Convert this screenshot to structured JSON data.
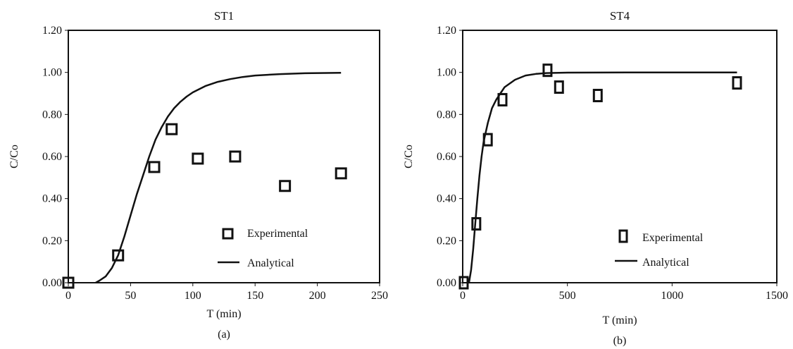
{
  "chart_data": [
    {
      "type": "scatter",
      "title": "ST1",
      "caption": "(a)",
      "xlabel": "T (min)",
      "ylabel": "C/Co",
      "xlim": [
        0,
        250
      ],
      "ylim": [
        0,
        1.2
      ],
      "x_ticks": [
        "0",
        "50",
        "100",
        "150",
        "200",
        "250"
      ],
      "y_ticks": [
        "0.00",
        "0.20",
        "0.40",
        "0.60",
        "0.80",
        "1.00",
        "1.20"
      ],
      "grid": false,
      "legend_position": "bottom-right",
      "series": [
        {
          "name": "Experimental",
          "kind": "marker",
          "marker": "open-square",
          "points": [
            [
              0,
              0.0
            ],
            [
              40,
              0.13
            ],
            [
              69,
              0.55
            ],
            [
              83,
              0.73
            ],
            [
              104,
              0.59
            ],
            [
              134,
              0.6
            ],
            [
              174,
              0.46
            ],
            [
              219,
              0.52
            ]
          ]
        },
        {
          "name": "Analytical",
          "kind": "line",
          "points": [
            [
              22,
              0.0
            ],
            [
              25,
              0.01
            ],
            [
              30,
              0.03
            ],
            [
              35,
              0.07
            ],
            [
              40,
              0.13
            ],
            [
              45,
              0.22
            ],
            [
              50,
              0.32
            ],
            [
              55,
              0.42
            ],
            [
              60,
              0.51
            ],
            [
              65,
              0.6
            ],
            [
              70,
              0.68
            ],
            [
              75,
              0.74
            ],
            [
              80,
              0.79
            ],
            [
              85,
              0.83
            ],
            [
              90,
              0.86
            ],
            [
              95,
              0.885
            ],
            [
              100,
              0.905
            ],
            [
              110,
              0.935
            ],
            [
              120,
              0.955
            ],
            [
              130,
              0.968
            ],
            [
              140,
              0.978
            ],
            [
              150,
              0.985
            ],
            [
              170,
              0.992
            ],
            [
              190,
              0.996
            ],
            [
              219,
              0.998
            ]
          ]
        }
      ]
    },
    {
      "type": "scatter",
      "title": "ST4",
      "caption": "(b)",
      "xlabel": "T (min)",
      "ylabel": "C/Co",
      "xlim": [
        0,
        1500
      ],
      "ylim": [
        0,
        1.2
      ],
      "x_ticks": [
        "0",
        "500",
        "1000",
        "1500"
      ],
      "y_ticks": [
        "0.00",
        "0.20",
        "0.40",
        "0.60",
        "0.80",
        "1.00",
        "1.20"
      ],
      "grid": false,
      "legend_position": "bottom-right",
      "series": [
        {
          "name": "Experimental",
          "kind": "marker",
          "marker": "open-square",
          "points": [
            [
              5,
              0.0
            ],
            [
              65,
              0.28
            ],
            [
              120,
              0.68
            ],
            [
              190,
              0.87
            ],
            [
              405,
              1.01
            ],
            [
              460,
              0.93
            ],
            [
              645,
              0.89
            ],
            [
              1310,
              0.95
            ]
          ]
        },
        {
          "name": "Analytical",
          "kind": "line",
          "points": [
            [
              30,
              0.0
            ],
            [
              40,
              0.06
            ],
            [
              50,
              0.16
            ],
            [
              60,
              0.28
            ],
            [
              70,
              0.4
            ],
            [
              80,
              0.51
            ],
            [
              90,
              0.6
            ],
            [
              100,
              0.67
            ],
            [
              120,
              0.76
            ],
            [
              140,
              0.83
            ],
            [
              160,
              0.87
            ],
            [
              180,
              0.9
            ],
            [
              200,
              0.93
            ],
            [
              250,
              0.965
            ],
            [
              300,
              0.985
            ],
            [
              350,
              0.993
            ],
            [
              400,
              0.997
            ],
            [
              500,
              0.999
            ],
            [
              800,
              1.0
            ],
            [
              1310,
              1.0
            ]
          ]
        }
      ]
    }
  ]
}
